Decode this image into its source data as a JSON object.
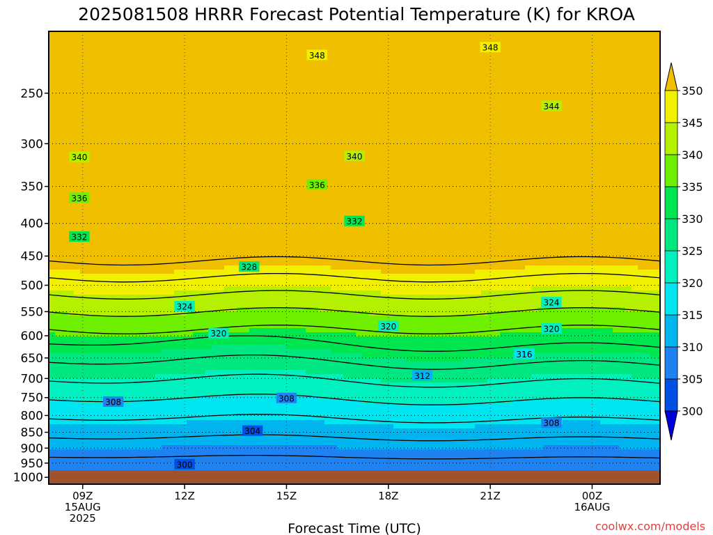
{
  "chart_data": {
    "type": "heatmap",
    "title": "2025081508 HRRR Forecast Potential Temperature (K) for KROA",
    "xlabel": "Forecast Time (UTC)",
    "ylabel": "",
    "x_ticks": [
      {
        "hour": 9,
        "lines": [
          "09Z",
          "15AUG",
          "2025"
        ]
      },
      {
        "hour": 12,
        "lines": [
          "12Z"
        ]
      },
      {
        "hour": 15,
        "lines": [
          "15Z"
        ]
      },
      {
        "hour": 18,
        "lines": [
          "18Z"
        ]
      },
      {
        "hour": 21,
        "lines": [
          "21Z"
        ]
      },
      {
        "hour": 24,
        "lines": [
          "00Z",
          "16AUG"
        ]
      }
    ],
    "xlim": [
      8,
      26
    ],
    "y_axis": {
      "ticks": [
        1000,
        950,
        900,
        850,
        800,
        750,
        700,
        650,
        600,
        550,
        500,
        450,
        400,
        350,
        300,
        250
      ],
      "ylim": [
        1025,
        200
      ],
      "scale": "log",
      "inverted": true
    },
    "surface_pressure": 975,
    "colorbar": {
      "levels": [
        300,
        305,
        310,
        315,
        320,
        325,
        330,
        335,
        340,
        345,
        350
      ],
      "extend": "both",
      "colors": [
        "#0000dd",
        "#0050e6",
        "#1e82f0",
        "#00b4f0",
        "#00e6f0",
        "#00f0c0",
        "#00e680",
        "#00e650",
        "#6ef000",
        "#b4f000",
        "#f0f000",
        "#f0c000"
      ]
    },
    "contour_interval": 4,
    "contour_labels": [
      {
        "value": 348,
        "hour": 15.9,
        "p": 218
      },
      {
        "value": 348,
        "hour": 21.0,
        "p": 212
      },
      {
        "value": 344,
        "hour": 22.8,
        "p": 262
      },
      {
        "value": 340,
        "hour": 8.9,
        "p": 315
      },
      {
        "value": 340,
        "hour": 17.0,
        "p": 314
      },
      {
        "value": 336,
        "hour": 15.9,
        "p": 348
      },
      {
        "value": 336,
        "hour": 8.9,
        "p": 365
      },
      {
        "value": 332,
        "hour": 17.0,
        "p": 397
      },
      {
        "value": 332,
        "hour": 8.9,
        "p": 420
      },
      {
        "value": 328,
        "hour": 13.9,
        "p": 468
      },
      {
        "value": 324,
        "hour": 12.0,
        "p": 540
      },
      {
        "value": 324,
        "hour": 22.8,
        "p": 532
      },
      {
        "value": 320,
        "hour": 18.0,
        "p": 580
      },
      {
        "value": 320,
        "hour": 13.0,
        "p": 595
      },
      {
        "value": 320,
        "hour": 22.8,
        "p": 585
      },
      {
        "value": 316,
        "hour": 22.0,
        "p": 641
      },
      {
        "value": 312,
        "hour": 19.0,
        "p": 693
      },
      {
        "value": 308,
        "hour": 9.9,
        "p": 762
      },
      {
        "value": 308,
        "hour": 15.0,
        "p": 752
      },
      {
        "value": 308,
        "hour": 22.8,
        "p": 822
      },
      {
        "value": 304,
        "hour": 14.0,
        "p": 846
      },
      {
        "value": 300,
        "hour": 12.0,
        "p": 955
      }
    ],
    "grid": true,
    "credit": "coolwx.com/models"
  }
}
